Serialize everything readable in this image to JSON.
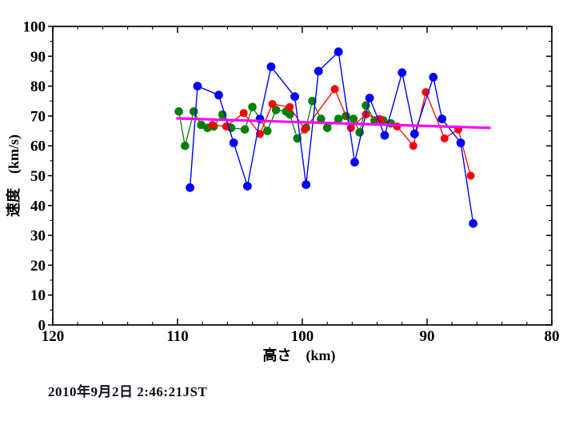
{
  "page": {
    "background": "#ffffff"
  },
  "annotation": {
    "timestamp": "2010年9月2日 2:46:21JST"
  },
  "chart_data": {
    "type": "scatter",
    "title": "",
    "xlabel": "高さ　(km)",
    "ylabel": "速度　(km/s)",
    "grid": false,
    "legend": "none",
    "x_axis": {
      "min": 80,
      "max": 120,
      "reversed": true,
      "major_ticks": [
        120,
        110,
        100,
        90,
        80
      ],
      "minor_step": 2
    },
    "y_axis": {
      "min": 0,
      "max": 100,
      "major_ticks": [
        0,
        10,
        20,
        30,
        40,
        50,
        60,
        70,
        80,
        90,
        100
      ],
      "minor_step": 5
    },
    "series": [
      {
        "name": "green-series",
        "color": "#008000",
        "points": [
          [
            109.9,
            71.5
          ],
          [
            109.4,
            60.0
          ],
          [
            108.7,
            71.5
          ],
          [
            108.1,
            67.0
          ],
          [
            107.6,
            66.0
          ],
          [
            107.1,
            66.5
          ],
          [
            106.4,
            70.5
          ],
          [
            105.7,
            66.0
          ],
          [
            104.6,
            65.5
          ],
          [
            104.0,
            73.0
          ],
          [
            102.8,
            65.0
          ],
          [
            102.1,
            72.0
          ],
          [
            101.3,
            71.5
          ],
          [
            101.0,
            70.5
          ],
          [
            100.4,
            62.5
          ],
          [
            99.7,
            66.0
          ],
          [
            99.2,
            75.0
          ],
          [
            98.5,
            69.0
          ],
          [
            98.0,
            66.0
          ],
          [
            97.1,
            69.0
          ],
          [
            96.5,
            70.0
          ],
          [
            95.9,
            69.0
          ],
          [
            95.4,
            64.5
          ],
          [
            94.9,
            73.5
          ],
          [
            94.2,
            68.5
          ],
          [
            93.5,
            68.5
          ],
          [
            92.9,
            67.5
          ]
        ]
      },
      {
        "name": "red-series",
        "color": "#ff0000",
        "points": [
          [
            107.2,
            67.0
          ],
          [
            106.1,
            66.5
          ],
          [
            104.7,
            71.0
          ],
          [
            103.4,
            64.0
          ],
          [
            102.4,
            74.0
          ],
          [
            101.0,
            73.0
          ],
          [
            99.8,
            65.5
          ],
          [
            97.4,
            79.0
          ],
          [
            96.1,
            66.0
          ],
          [
            94.9,
            70.5
          ],
          [
            93.8,
            69.0
          ],
          [
            92.4,
            66.5
          ],
          [
            91.1,
            60.0
          ],
          [
            90.1,
            78.0
          ],
          [
            88.6,
            62.5
          ],
          [
            87.5,
            65.5
          ],
          [
            86.5,
            50.0
          ]
        ]
      },
      {
        "name": "blue-series",
        "color": "#0000ff",
        "points": [
          [
            109.0,
            46.0
          ],
          [
            108.4,
            80.0
          ],
          [
            106.7,
            77.0
          ],
          [
            105.5,
            61.0
          ],
          [
            104.4,
            46.5
          ],
          [
            103.4,
            69.0
          ],
          [
            102.5,
            86.5
          ],
          [
            100.6,
            76.5
          ],
          [
            99.7,
            47.0
          ],
          [
            98.7,
            85.0
          ],
          [
            97.1,
            91.5
          ],
          [
            95.8,
            54.5
          ],
          [
            94.6,
            76.0
          ],
          [
            93.4,
            63.5
          ],
          [
            92.0,
            84.5
          ],
          [
            91.0,
            64.0
          ],
          [
            89.5,
            83.0
          ],
          [
            88.8,
            69.0
          ],
          [
            87.3,
            61.0
          ],
          [
            86.3,
            34.0
          ]
        ]
      }
    ],
    "trend_line": {
      "name": "magenta-trend-line",
      "color": "#ff00ff",
      "from": [
        110.1,
        69.2
      ],
      "to": [
        84.9,
        66.0
      ]
    }
  }
}
